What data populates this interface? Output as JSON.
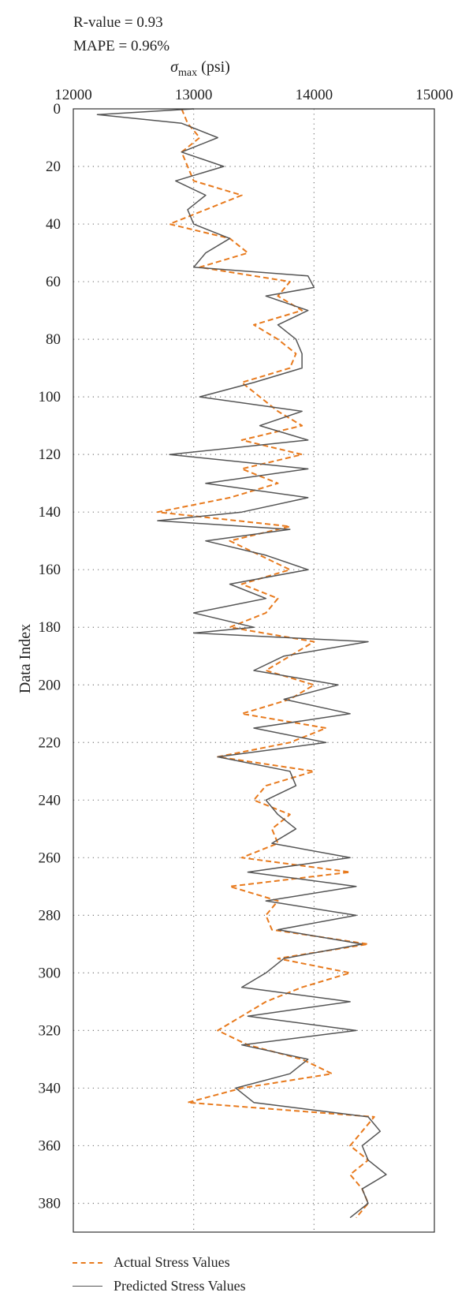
{
  "stats": {
    "r_value": "R-value = 0.93",
    "mape": "MAPE = 0.96%"
  },
  "chart_data": {
    "type": "line",
    "orientation": "vertical-index",
    "title": "",
    "xlabel_prefix": "σ",
    "xlabel_sub": "max",
    "xlabel_unit": " (psi)",
    "ylabel": "Data Index",
    "xlim": [
      12000,
      15000
    ],
    "ylim": [
      0,
      390
    ],
    "x_ticks": [
      "12000",
      "13000",
      "14000",
      "15000"
    ],
    "y_ticks": [
      "0",
      "20",
      "40",
      "60",
      "80",
      "100",
      "120",
      "140",
      "160",
      "180",
      "200",
      "220",
      "240",
      "260",
      "280",
      "300",
      "320",
      "340",
      "360",
      "380"
    ],
    "grid": "dotted",
    "legend_placement": "bottom",
    "colors": {
      "actual": "#e87a1d",
      "predicted": "#555555"
    },
    "series": [
      {
        "name": "Actual Stress Values",
        "style": "dashed",
        "index": [
          0,
          5,
          10,
          15,
          20,
          25,
          30,
          35,
          40,
          45,
          50,
          55,
          60,
          65,
          70,
          75,
          80,
          85,
          90,
          95,
          100,
          105,
          110,
          115,
          120,
          125,
          130,
          135,
          140,
          145,
          150,
          155,
          160,
          165,
          170,
          175,
          180,
          185,
          190,
          195,
          200,
          205,
          210,
          215,
          220,
          225,
          230,
          235,
          240,
          245,
          250,
          255,
          260,
          265,
          270,
          275,
          280,
          285,
          290,
          295,
          300,
          305,
          310,
          315,
          320,
          325,
          330,
          335,
          340,
          345,
          350,
          355,
          360,
          365,
          370,
          375,
          380,
          385
        ],
        "values": [
          12900,
          12950,
          13050,
          12900,
          12950,
          13000,
          13400,
          13100,
          12800,
          13300,
          13450,
          13050,
          13800,
          13700,
          13900,
          13500,
          13700,
          13850,
          13800,
          13400,
          13550,
          13700,
          13900,
          13400,
          13900,
          13400,
          13700,
          13300,
          12700,
          13800,
          13300,
          13550,
          13800,
          13400,
          13700,
          13600,
          13300,
          14000,
          13800,
          13600,
          14000,
          13800,
          13400,
          14100,
          13800,
          13200,
          14000,
          13600,
          13500,
          13800,
          13650,
          13700,
          13400,
          14300,
          13300,
          13700,
          13600,
          13650,
          14450,
          13700,
          14300,
          13900,
          13600,
          13400,
          13200,
          13450,
          13900,
          14150,
          13400,
          12950,
          14500,
          14400,
          14300,
          14450,
          14300,
          14400,
          14450,
          14350
        ]
      },
      {
        "name": "Predicted Stress Values",
        "style": "solid",
        "index": [
          0,
          2,
          5,
          10,
          15,
          20,
          25,
          30,
          35,
          40,
          45,
          50,
          55,
          58,
          62,
          65,
          70,
          75,
          80,
          85,
          90,
          95,
          100,
          105,
          110,
          115,
          120,
          125,
          130,
          135,
          140,
          143,
          146,
          150,
          155,
          160,
          165,
          170,
          175,
          180,
          182,
          185,
          190,
          195,
          200,
          205,
          210,
          215,
          220,
          225,
          230,
          235,
          240,
          245,
          250,
          255,
          260,
          265,
          270,
          275,
          280,
          285,
          290,
          295,
          300,
          305,
          310,
          315,
          320,
          325,
          330,
          335,
          340,
          345,
          350,
          355,
          360,
          365,
          370,
          375,
          380,
          385
        ],
        "values": [
          13000,
          12200,
          12900,
          13200,
          12900,
          13250,
          12850,
          13100,
          12950,
          13000,
          13300,
          13100,
          13000,
          13950,
          14000,
          13600,
          13950,
          13700,
          13850,
          13900,
          13900,
          13500,
          13050,
          13900,
          13550,
          13950,
          12800,
          13950,
          13100,
          13950,
          13400,
          12700,
          13800,
          13100,
          13600,
          13950,
          13300,
          13600,
          13000,
          13500,
          13000,
          14450,
          13750,
          13500,
          14200,
          13750,
          14300,
          13500,
          14100,
          13200,
          13800,
          13850,
          13600,
          13700,
          13850,
          13650,
          14300,
          13450,
          14350,
          13600,
          14350,
          13700,
          14400,
          13750,
          13600,
          13400,
          14300,
          13450,
          14350,
          13400,
          13950,
          13800,
          13350,
          13500,
          14450,
          14550,
          14400,
          14450,
          14600,
          14400,
          14450,
          14300
        ]
      }
    ]
  }
}
